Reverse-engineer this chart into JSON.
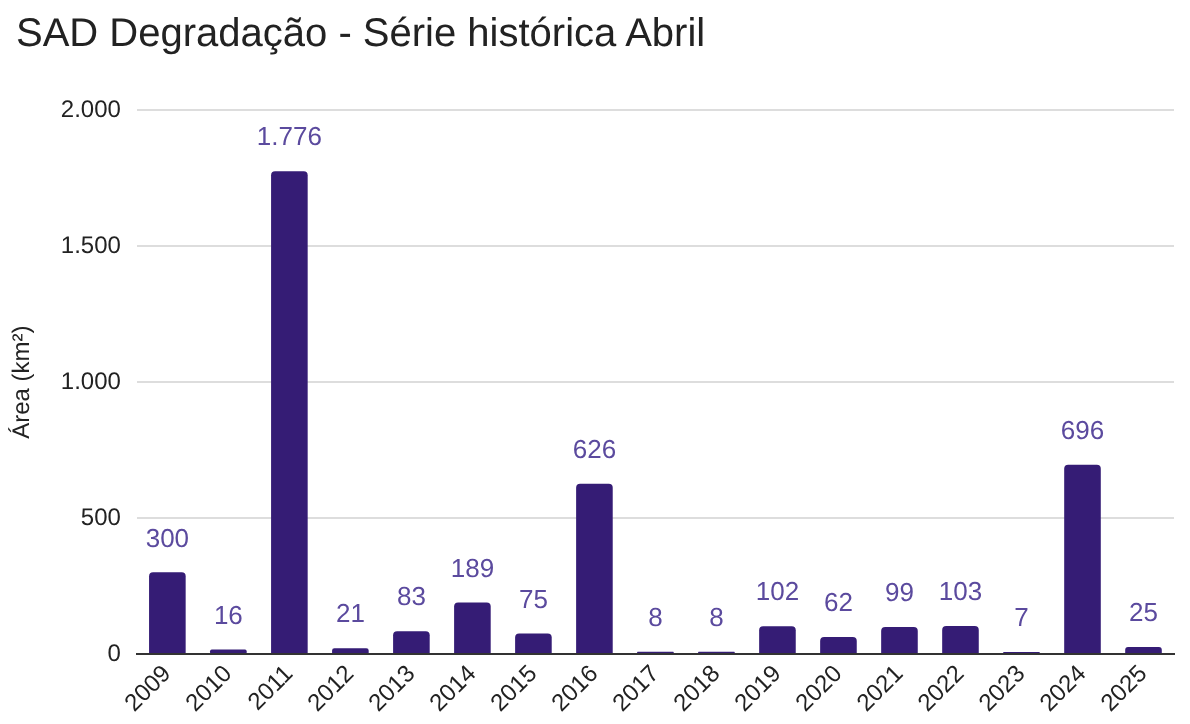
{
  "chart_data": {
    "type": "bar",
    "title": "SAD Degradação - Série histórica Abril",
    "ylabel": "Área (km²)",
    "categories": [
      "2009",
      "2010",
      "2011",
      "2012",
      "2013",
      "2014",
      "2015",
      "2016",
      "2017",
      "2018",
      "2019",
      "2020",
      "2021",
      "2022",
      "2023",
      "2024",
      "2025"
    ],
    "values": [
      300,
      16,
      1776,
      21,
      83,
      189,
      75,
      626,
      8,
      8,
      102,
      62,
      99,
      103,
      7,
      696,
      25
    ],
    "value_labels": [
      "300",
      "16",
      "1.776",
      "21",
      "83",
      "189",
      "75",
      "626",
      "8",
      "8",
      "102",
      "62",
      "99",
      "103",
      "7",
      "696",
      "25"
    ],
    "color": "#351c75",
    "ylim": [
      0,
      2000
    ],
    "yticks": [
      {
        "value": 0,
        "label": "0"
      },
      {
        "value": 500,
        "label": "500"
      },
      {
        "value": 1000,
        "label": "1.000"
      },
      {
        "value": 1500,
        "label": "1.500"
      },
      {
        "value": 2000,
        "label": "2.000"
      }
    ],
    "grid": "y",
    "legend": false
  }
}
